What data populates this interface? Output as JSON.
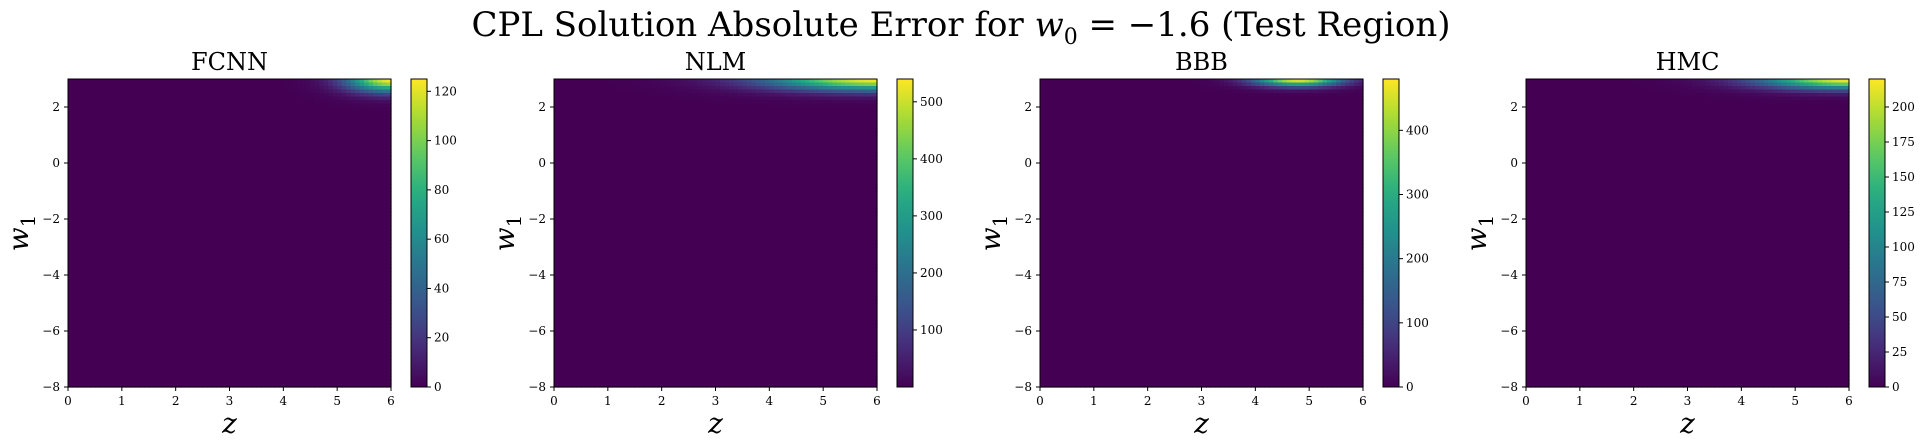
{
  "figure": {
    "title_prefix": "CPL Solution Absolute Error for ",
    "title_math_var": "w",
    "title_math_sub": "0",
    "title_math_rest": " = −1.6",
    "title_suffix": " (Test Region)"
  },
  "chart_data": [
    {
      "type": "heatmap",
      "title": "FCNN",
      "xlabel": "z",
      "ylabel_var": "w",
      "ylabel_sub": "1",
      "xlim": [
        0,
        6
      ],
      "ylim": [
        -8,
        3
      ],
      "xticks": [
        0,
        1,
        2,
        3,
        4,
        5,
        6
      ],
      "yticks": [
        -8,
        -6,
        -4,
        -2,
        0,
        2
      ],
      "colorbar": {
        "min": 0,
        "max": 125,
        "ticks": [
          0,
          20,
          40,
          60,
          80,
          100,
          120
        ]
      },
      "hotspot": {
        "z": 6.0,
        "w1": 3.0,
        "z_spread": 0.8,
        "w1_spread": 0.45,
        "peak": 125
      }
    },
    {
      "type": "heatmap",
      "title": "NLM",
      "xlabel": "z",
      "ylabel_var": "w",
      "ylabel_sub": "1",
      "xlim": [
        0,
        6
      ],
      "ylim": [
        -8,
        3
      ],
      "xticks": [
        0,
        1,
        2,
        3,
        4,
        5,
        6
      ],
      "yticks": [
        -8,
        -6,
        -4,
        -2,
        0,
        2
      ],
      "colorbar": {
        "min": 0,
        "max": 540,
        "ticks": [
          100,
          200,
          300,
          400,
          500
        ]
      },
      "hotspot": {
        "z": 6.0,
        "w1": 3.0,
        "z_spread": 2.0,
        "w1_spread": 0.4,
        "peak": 540
      }
    },
    {
      "type": "heatmap",
      "title": "BBB",
      "xlabel": "z",
      "ylabel_var": "w",
      "ylabel_sub": "1",
      "xlim": [
        0,
        6
      ],
      "ylim": [
        -8,
        3
      ],
      "xticks": [
        0,
        1,
        2,
        3,
        4,
        5,
        6
      ],
      "yticks": [
        -8,
        -6,
        -4,
        -2,
        0,
        2
      ],
      "colorbar": {
        "min": 0,
        "max": 480,
        "ticks": [
          0,
          100,
          200,
          300,
          400
        ]
      },
      "hotspot": {
        "z": 4.8,
        "w1": 3.0,
        "z_spread": 0.8,
        "w1_spread": 0.25,
        "peak": 480
      }
    },
    {
      "type": "heatmap",
      "title": "HMC",
      "xlabel": "z",
      "ylabel_var": "w",
      "ylabel_sub": "1",
      "xlim": [
        0,
        6
      ],
      "ylim": [
        -8,
        3
      ],
      "xticks": [
        0,
        1,
        2,
        3,
        4,
        5,
        6
      ],
      "yticks": [
        -8,
        -6,
        -4,
        -2,
        0,
        2
      ],
      "colorbar": {
        "min": 0,
        "max": 220,
        "ticks": [
          0,
          25,
          50,
          75,
          100,
          125,
          150,
          175,
          200
        ]
      },
      "hotspot": {
        "z": 6.0,
        "w1": 3.0,
        "z_spread": 1.6,
        "w1_spread": 0.35,
        "peak": 220
      }
    }
  ]
}
